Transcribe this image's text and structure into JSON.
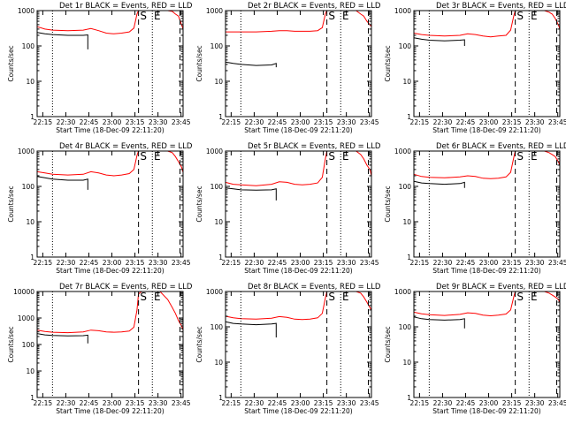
{
  "xlabel": "Start Time (18-Dec-09 22:11:20)",
  "ylabel": "Counts/sec",
  "legend_text": "BLACK = Events, RED = LLD",
  "colors": {
    "events": "#000000",
    "lld": "#ff0000",
    "axes": "#000000"
  },
  "markers": {
    "start": "S",
    "end": "E"
  },
  "xticks": [
    "22:15",
    "22:30",
    "22:45",
    "23:00",
    "23:15",
    "23:30",
    "23:45"
  ],
  "xtick_values_min": [
    3.67,
    18.67,
    33.67,
    48.67,
    63.67,
    78.67,
    93.67
  ],
  "xlim_min": [
    0,
    95
  ],
  "chart_data": [
    {
      "type": "line",
      "title": "Det 1r BLACK = Events, RED = LLD",
      "ylim": [
        1,
        1000
      ],
      "yscale": "log",
      "yticks": [
        "1",
        "10",
        "100",
        "1000"
      ],
      "dotted_lines_min": [
        10,
        75
      ],
      "dashed_lines_min": [
        66,
        93
      ],
      "s_marker_min": 67,
      "e_marker_min": 76,
      "series": [
        {
          "role": "events",
          "x": [
            0,
            5,
            10,
            20,
            30,
            33,
            33
          ],
          "y": [
            240,
            220,
            210,
            200,
            200,
            205,
            80
          ]
        },
        {
          "role": "lld",
          "x": [
            0,
            5,
            10,
            20,
            30,
            35,
            40,
            45,
            50,
            55,
            60,
            63,
            65,
            66,
            68,
            75,
            80,
            85,
            88,
            90,
            92,
            94,
            95
          ],
          "y": [
            350,
            300,
            280,
            270,
            280,
            310,
            270,
            230,
            220,
            230,
            250,
            320,
            800,
            1000,
            1000,
            1000,
            1000,
            1000,
            950,
            800,
            700,
            400,
            300
          ]
        }
      ]
    },
    {
      "type": "line",
      "title": "Det 2r BLACK = Events, RED = LLD",
      "ylim": [
        1,
        1000
      ],
      "yscale": "log",
      "yticks": [
        "1",
        "10",
        "100",
        "1000"
      ],
      "dotted_lines_min": [
        10,
        75
      ],
      "dashed_lines_min": [
        66,
        93
      ],
      "s_marker_min": 67,
      "e_marker_min": 76,
      "series": [
        {
          "role": "events",
          "x": [
            0,
            5,
            10,
            20,
            30,
            33,
            33
          ],
          "y": [
            35,
            32,
            30,
            28,
            29,
            32,
            25
          ]
        },
        {
          "role": "lld",
          "x": [
            0,
            5,
            10,
            20,
            30,
            35,
            40,
            45,
            50,
            55,
            60,
            63,
            65,
            66,
            68,
            75,
            80,
            85,
            88,
            90,
            92,
            94,
            95
          ],
          "y": [
            250,
            250,
            250,
            250,
            260,
            270,
            270,
            260,
            260,
            260,
            270,
            330,
            800,
            1000,
            1000,
            1000,
            1000,
            1000,
            800,
            700,
            500,
            400,
            350
          ]
        }
      ]
    },
    {
      "type": "line",
      "title": "Det 3r BLACK = Events, RED = LLD",
      "ylim": [
        1,
        1000
      ],
      "yscale": "log",
      "yticks": [
        "1",
        "10",
        "100",
        "1000"
      ],
      "dotted_lines_min": [
        10,
        75
      ],
      "dashed_lines_min": [
        66,
        93
      ],
      "s_marker_min": 67,
      "e_marker_min": 76,
      "series": [
        {
          "role": "events",
          "x": [
            0,
            5,
            10,
            20,
            30,
            33,
            33
          ],
          "y": [
            170,
            155,
            145,
            140,
            145,
            150,
            100
          ]
        },
        {
          "role": "lld",
          "x": [
            0,
            5,
            10,
            20,
            30,
            35,
            40,
            45,
            50,
            55,
            60,
            63,
            65,
            66,
            68,
            75,
            80,
            85,
            88,
            90,
            92,
            94,
            95
          ],
          "y": [
            230,
            210,
            200,
            190,
            200,
            220,
            210,
            190,
            180,
            190,
            200,
            280,
            700,
            1000,
            1000,
            1000,
            1000,
            1000,
            900,
            800,
            600,
            400,
            300
          ]
        }
      ]
    },
    {
      "type": "line",
      "title": "Det 4r BLACK = Events, RED = LLD",
      "ylim": [
        1,
        1000
      ],
      "yscale": "log",
      "yticks": [
        "1",
        "10",
        "100",
        "1000"
      ],
      "dotted_lines_min": [
        10,
        75
      ],
      "dashed_lines_min": [
        66,
        93
      ],
      "s_marker_min": 67,
      "e_marker_min": 76,
      "series": [
        {
          "role": "events",
          "x": [
            0,
            5,
            10,
            20,
            30,
            33,
            33
          ],
          "y": [
            190,
            175,
            160,
            150,
            150,
            160,
            80
          ]
        },
        {
          "role": "lld",
          "x": [
            0,
            5,
            10,
            20,
            30,
            35,
            40,
            45,
            50,
            55,
            60,
            63,
            65,
            66,
            68,
            75,
            80,
            85,
            88,
            90,
            92,
            94,
            95
          ],
          "y": [
            260,
            240,
            220,
            210,
            220,
            260,
            240,
            210,
            200,
            210,
            230,
            300,
            750,
            1000,
            1000,
            1000,
            1000,
            1000,
            900,
            700,
            500,
            350,
            250
          ]
        }
      ]
    },
    {
      "type": "line",
      "title": "Det 5r BLACK = Events, RED = LLD",
      "ylim": [
        1,
        1000
      ],
      "yscale": "log",
      "yticks": [
        "1",
        "10",
        "100",
        "1000"
      ],
      "dotted_lines_min": [
        10,
        75
      ],
      "dashed_lines_min": [
        66,
        93
      ],
      "s_marker_min": 67,
      "e_marker_min": 76,
      "series": [
        {
          "role": "events",
          "x": [
            0,
            5,
            10,
            20,
            30,
            33,
            33
          ],
          "y": [
            90,
            85,
            80,
            78,
            80,
            85,
            40
          ]
        },
        {
          "role": "lld",
          "x": [
            0,
            5,
            10,
            20,
            30,
            35,
            40,
            45,
            50,
            55,
            60,
            63,
            65,
            66,
            68,
            75,
            80,
            85,
            88,
            90,
            92,
            94,
            95
          ],
          "y": [
            130,
            115,
            110,
            105,
            115,
            135,
            130,
            115,
            110,
            115,
            125,
            180,
            600,
            1000,
            1000,
            1000,
            1000,
            1000,
            800,
            600,
            400,
            300,
            200
          ]
        }
      ]
    },
    {
      "type": "line",
      "title": "Det 6r BLACK = Events, RED = LLD",
      "ylim": [
        1,
        1000
      ],
      "yscale": "log",
      "yticks": [
        "1",
        "10",
        "100",
        "1000"
      ],
      "dotted_lines_min": [
        10,
        75
      ],
      "dashed_lines_min": [
        66,
        93
      ],
      "s_marker_min": 67,
      "e_marker_min": 76,
      "series": [
        {
          "role": "events",
          "x": [
            0,
            5,
            10,
            20,
            30,
            33,
            33
          ],
          "y": [
            140,
            125,
            120,
            115,
            120,
            130,
            90
          ]
        },
        {
          "role": "lld",
          "x": [
            0,
            5,
            10,
            20,
            30,
            35,
            40,
            45,
            50,
            55,
            60,
            63,
            65,
            66,
            68,
            75,
            80,
            85,
            88,
            90,
            92,
            94,
            95
          ],
          "y": [
            220,
            190,
            180,
            175,
            185,
            200,
            190,
            170,
            165,
            170,
            185,
            250,
            650,
            1000,
            1000,
            1000,
            1000,
            1000,
            900,
            800,
            700,
            500,
            400
          ]
        }
      ]
    },
    {
      "type": "line",
      "title": "Det 7r BLACK = Events, RED = LLD",
      "ylim": [
        1,
        10000
      ],
      "yscale": "log",
      "yticks": [
        "1",
        "10",
        "100",
        "1000",
        "10000"
      ],
      "dotted_lines_min": [
        10,
        75
      ],
      "dashed_lines_min": [
        66,
        93
      ],
      "s_marker_min": 67,
      "e_marker_min": 76,
      "series": [
        {
          "role": "events",
          "x": [
            0,
            5,
            10,
            20,
            30,
            33,
            33
          ],
          "y": [
            260,
            230,
            220,
            210,
            215,
            225,
            110
          ]
        },
        {
          "role": "lld",
          "x": [
            0,
            5,
            10,
            20,
            30,
            35,
            40,
            45,
            50,
            55,
            60,
            63,
            65,
            66,
            68,
            75,
            80,
            85,
            88,
            90,
            92,
            94,
            95
          ],
          "y": [
            350,
            310,
            290,
            280,
            300,
            350,
            330,
            300,
            290,
            300,
            320,
            450,
            2000,
            8000,
            10000,
            10000,
            10000,
            5000,
            2500,
            1500,
            800,
            500,
            350
          ]
        }
      ]
    },
    {
      "type": "line",
      "title": "Det 8r BLACK = Events, RED = LLD",
      "ylim": [
        1,
        1000
      ],
      "yscale": "log",
      "yticks": [
        "1",
        "10",
        "100",
        "1000"
      ],
      "dotted_lines_min": [
        10,
        75
      ],
      "dashed_lines_min": [
        66,
        93
      ],
      "s_marker_min": 67,
      "e_marker_min": 76,
      "series": [
        {
          "role": "events",
          "x": [
            0,
            5,
            10,
            20,
            30,
            33,
            33
          ],
          "y": [
            140,
            125,
            120,
            115,
            120,
            125,
            50
          ]
        },
        {
          "role": "lld",
          "x": [
            0,
            5,
            10,
            20,
            30,
            35,
            40,
            45,
            50,
            55,
            60,
            63,
            65,
            66,
            68,
            75,
            80,
            85,
            88,
            90,
            92,
            94,
            95
          ],
          "y": [
            200,
            180,
            170,
            165,
            175,
            195,
            185,
            165,
            160,
            165,
            180,
            240,
            650,
            1000,
            1000,
            1000,
            1000,
            1000,
            900,
            700,
            500,
            350,
            300
          ]
        }
      ]
    },
    {
      "type": "line",
      "title": "Det 9r BLACK = Events, RED = LLD",
      "ylim": [
        1,
        1000
      ],
      "yscale": "log",
      "yticks": [
        "1",
        "10",
        "100",
        "1000"
      ],
      "dotted_lines_min": [
        10,
        75
      ],
      "dashed_lines_min": [
        66,
        93
      ],
      "s_marker_min": 67,
      "e_marker_min": 76,
      "series": [
        {
          "role": "events",
          "x": [
            0,
            5,
            10,
            20,
            30,
            33,
            33
          ],
          "y": [
            190,
            170,
            160,
            155,
            160,
            170,
            90
          ]
        },
        {
          "role": "lld",
          "x": [
            0,
            5,
            10,
            20,
            30,
            35,
            40,
            45,
            50,
            55,
            60,
            63,
            65,
            66,
            68,
            75,
            80,
            85,
            88,
            90,
            92,
            94,
            95
          ],
          "y": [
            260,
            235,
            220,
            210,
            225,
            250,
            240,
            215,
            205,
            215,
            230,
            300,
            700,
            1000,
            1000,
            1000,
            1000,
            1000,
            900,
            800,
            700,
            600,
            500
          ]
        }
      ]
    }
  ]
}
